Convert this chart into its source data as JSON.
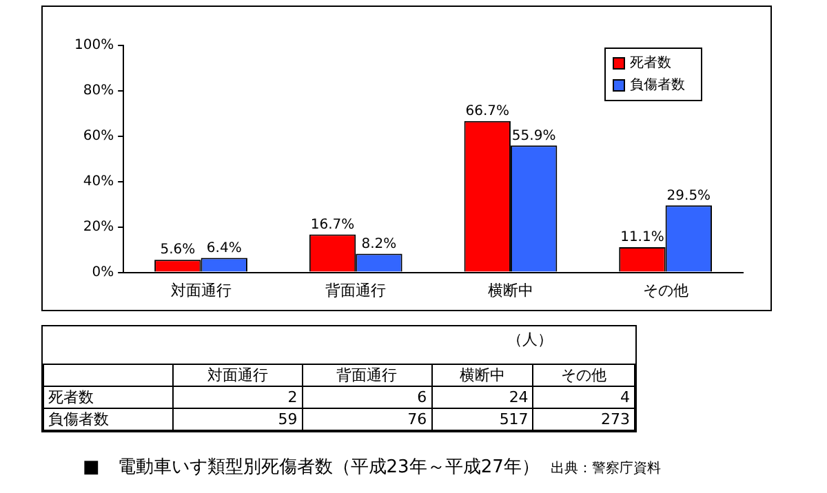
{
  "chart_data": [
    {
      "type": "bar",
      "title": "■　電動車いす類型別死傷者数（平成23年～平成27年）",
      "annotations": [
        "出典：警察庁資料"
      ],
      "categories": [
        "対面通行",
        "背面通行",
        "横断中",
        "その他"
      ],
      "series": [
        {
          "name": "死者数",
          "color": "#ff0000",
          "values": [
            5.6,
            16.7,
            66.7,
            11.1
          ],
          "value_labels": [
            "5.6%",
            "16.7%",
            "66.7%",
            "11.1%"
          ]
        },
        {
          "name": "負傷者数",
          "color": "#3366ff",
          "values": [
            6.4,
            8.2,
            55.9,
            29.5
          ],
          "value_labels": [
            "6.4%",
            "8.2%",
            "55.9%",
            "29.5%"
          ]
        }
      ],
      "ylim": [
        0,
        100
      ],
      "yticks": [
        {
          "value": 0,
          "label": "0%"
        },
        {
          "value": 20,
          "label": "20%"
        },
        {
          "value": 40,
          "label": "40%"
        },
        {
          "value": 60,
          "label": "60%"
        },
        {
          "value": 80,
          "label": "80%"
        },
        {
          "value": 100,
          "label": "100%"
        }
      ],
      "grid": false,
      "legend": "top right"
    },
    {
      "type": "other",
      "annotations": [
        "（人）"
      ],
      "categories": [
        "対面通行",
        "背面通行",
        "横断中",
        "その他"
      ],
      "series": [
        {
          "name": "死者数",
          "values": [
            2,
            6,
            24,
            4
          ]
        },
        {
          "name": "負傷者数",
          "values": [
            59,
            76,
            517,
            273
          ]
        }
      ],
      "data_labels": true
    }
  ]
}
